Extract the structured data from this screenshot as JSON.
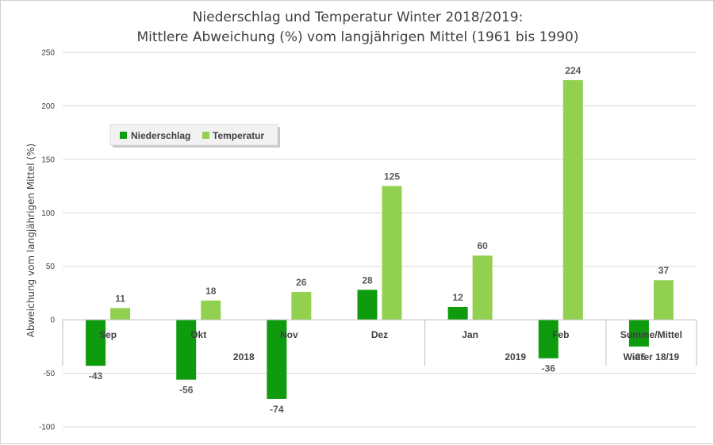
{
  "chart_data": {
    "type": "bar",
    "title_lines": [
      "Niederschlag und Temperatur Winter 2018/2019:",
      "Mittlere Abweichung (%) vom langjährigen Mittel (1961 bis 1990)"
    ],
    "ylabel": "Abweichung vom langjährigen Mittel (%)",
    "ylim": [
      -100,
      250
    ],
    "yticks": [
      -100,
      -50,
      0,
      50,
      100,
      150,
      200,
      250
    ],
    "categories": [
      "Sep",
      "Okt",
      "Nov",
      "Dez",
      "Jan",
      "Feb",
      "Summe/Mittel"
    ],
    "groups": [
      {
        "label": "2018",
        "from": 0,
        "to": 3
      },
      {
        "label": "2019",
        "from": 4,
        "to": 5
      },
      {
        "label": "Winter 18/19",
        "from": 6,
        "to": 6
      }
    ],
    "series": [
      {
        "name": "Niederschlag",
        "color": "#0e9c0e",
        "values": [
          -43,
          -56,
          -74,
          28,
          12,
          -36,
          -25
        ]
      },
      {
        "name": "Temperatur",
        "color": "#92d050",
        "values": [
          11,
          18,
          26,
          125,
          60,
          224,
          37
        ]
      }
    ],
    "grid": true,
    "legend_position": "top-left"
  }
}
